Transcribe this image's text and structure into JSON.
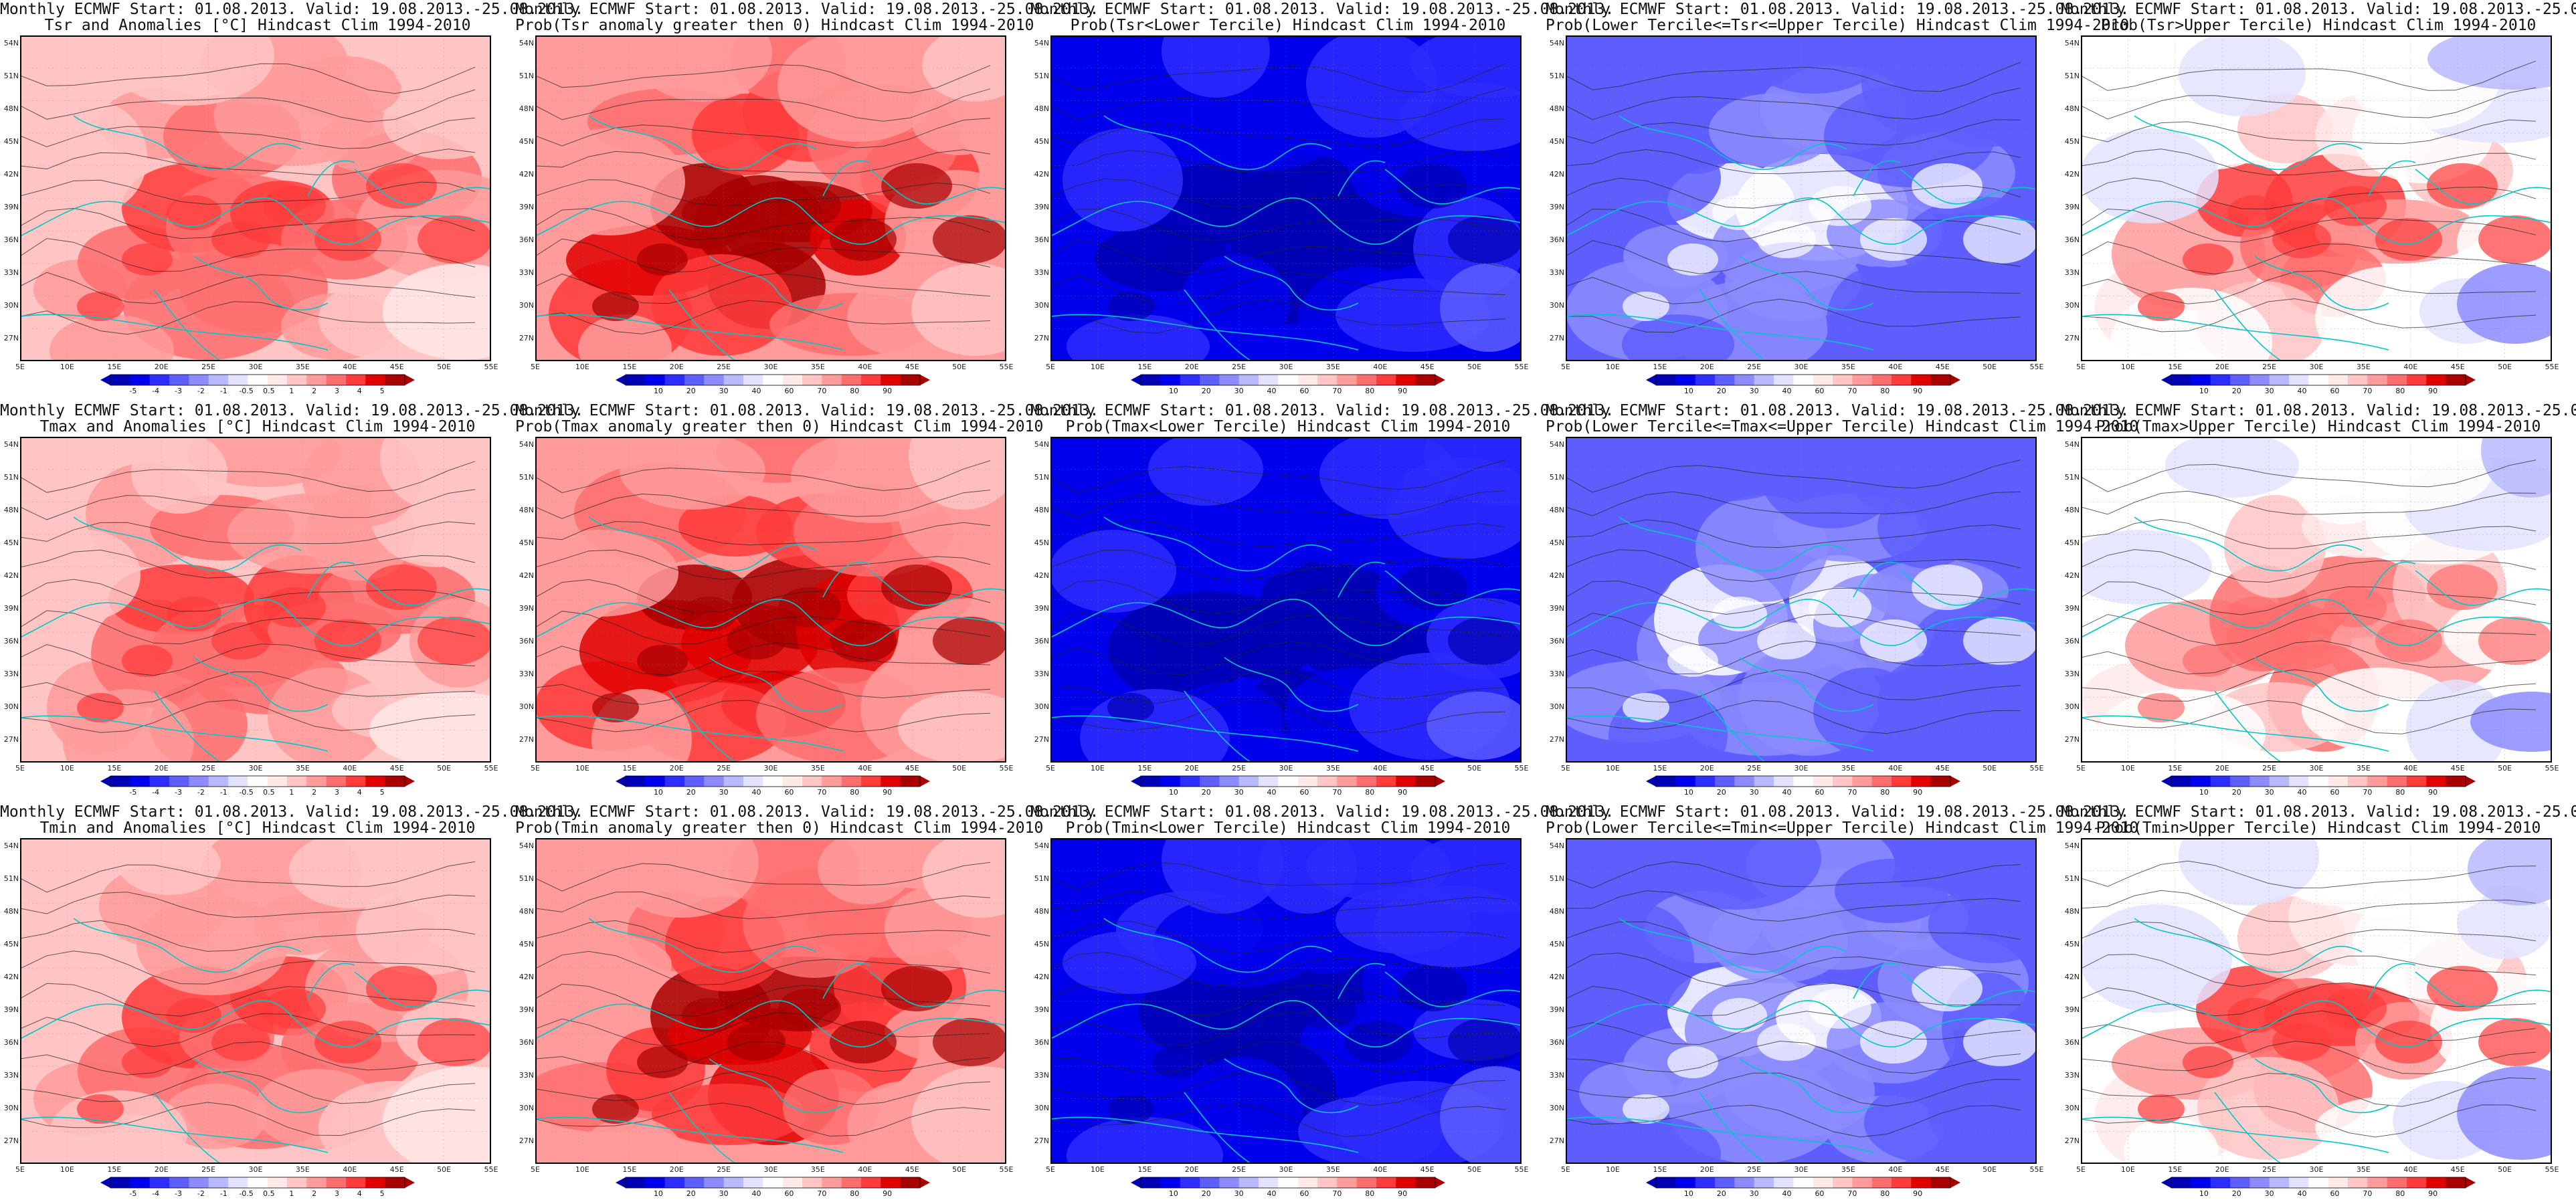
{
  "header": "Monthly ECMWF Start: 01.08.2013. Valid: 19.08.2013.-25.08.2013.",
  "y_labels": [
    "54N",
    "51N",
    "48N",
    "45N",
    "42N",
    "39N",
    "36N",
    "33N",
    "30N",
    "27N"
  ],
  "x_labels": [
    "5E",
    "10E",
    "15E",
    "20E",
    "25E",
    "30E",
    "35E",
    "40E",
    "45E",
    "50E",
    "55E"
  ],
  "colors": {
    "reds": [
      "#ffe9e9",
      "#ffc4c4",
      "#ff9b9b",
      "#ff6e6e",
      "#ff3b3b",
      "#e00000",
      "#a80000"
    ],
    "blues": [
      "#e3e3ff",
      "#b9b9ff",
      "#8c8cff",
      "#5e5eff",
      "#2d2dff",
      "#0000ec",
      "#0000b4"
    ],
    "coast": "#00c8c8",
    "contour": "#222222"
  },
  "legends": {
    "anom": [
      "-5",
      "-4",
      "-3",
      "-2",
      "-1",
      "-0.5",
      "0.5",
      "1",
      "2",
      "3",
      "4",
      "5"
    ],
    "prob": [
      "10",
      "20",
      "30",
      "40",
      "60",
      "70",
      "80",
      "90"
    ]
  },
  "maps": {
    "points": [
      [
        110,
        400,
        0.6
      ],
      [
        180,
        330,
        0.8
      ],
      [
        250,
        260,
        1.0
      ],
      [
        320,
        300,
        0.9
      ],
      [
        400,
        250,
        1.0
      ],
      [
        480,
        300,
        0.8
      ],
      [
        560,
        220,
        0.7
      ],
      [
        640,
        300,
        0.4
      ],
      [
        200,
        120,
        0.5
      ],
      [
        300,
        150,
        0.7
      ],
      [
        420,
        130,
        0.6
      ],
      [
        520,
        140,
        0.5
      ],
      [
        620,
        120,
        0.3
      ],
      [
        360,
        380,
        0.9
      ],
      [
        280,
        420,
        0.7
      ],
      [
        460,
        420,
        0.5
      ],
      [
        560,
        420,
        0.3
      ],
      [
        660,
        420,
        0.1
      ],
      [
        100,
        200,
        0.3
      ],
      [
        150,
        460,
        0.4
      ],
      [
        380,
        40,
        0.5
      ],
      [
        240,
        40,
        0.3
      ],
      [
        500,
        60,
        0.4
      ],
      [
        660,
        40,
        0.2
      ]
    ]
  },
  "panels": [
    {
      "title": "Tsr and Anomalies [°C] Hindcast Clim 1994-2010",
      "scheme": "anom",
      "intensity": 0.55,
      "legend": "anom"
    },
    {
      "title": "Prob(Tsr anomaly greater then 0) Hindcast Clim 1994-2010",
      "scheme": "warm",
      "intensity": 0.95,
      "legend": "prob"
    },
    {
      "title": "Prob(Tsr<Lower Tercile) Hindcast Clim 1994-2010",
      "scheme": "cold",
      "intensity": 0.95,
      "legend": "prob"
    },
    {
      "title": "Prob(Lower Tercile<=Tsr<=Upper Tercile) Hindcast Clim 1994-2010",
      "scheme": "mid",
      "intensity": 0.6,
      "legend": "prob"
    },
    {
      "title": "Prob(Tsr>Upper Tercile) Hindcast Clim 1994-2010",
      "scheme": "mixed",
      "intensity": 0.7,
      "legend": "prob"
    },
    {
      "title": "Tmax and Anomalies [°C] Hindcast Clim 1994-2010",
      "scheme": "anom",
      "intensity": 0.55,
      "legend": "anom"
    },
    {
      "title": "Prob(Tmax anomaly greater then 0) Hindcast Clim 1994-2010",
      "scheme": "warm",
      "intensity": 0.9,
      "legend": "prob"
    },
    {
      "title": "Prob(Tmax<Lower Tercile) Hindcast Clim 1994-2010",
      "scheme": "cold",
      "intensity": 0.95,
      "legend": "prob"
    },
    {
      "title": "Prob(Lower Tercile<=Tmax<=Upper Tercile) Hindcast Clim 1994-2010",
      "scheme": "mid",
      "intensity": 0.6,
      "legend": "prob"
    },
    {
      "title": "Prob(Tmax>Upper Tercile) Hindcast Clim 1994-2010",
      "scheme": "mixed",
      "intensity": 0.6,
      "legend": "prob"
    },
    {
      "title": "Tmin and Anomalies [°C] Hindcast Clim 1994-2010",
      "scheme": "anom",
      "intensity": 0.5,
      "legend": "anom"
    },
    {
      "title": "Prob(Tmin anomaly greater then 0) Hindcast Clim 1994-2010",
      "scheme": "warm",
      "intensity": 0.85,
      "legend": "prob"
    },
    {
      "title": "Prob(Tmin<Lower Tercile) Hindcast Clim 1994-2010",
      "scheme": "cold",
      "intensity": 0.9,
      "legend": "prob"
    },
    {
      "title": "Prob(Lower Tercile<=Tmin<=Upper Tercile) Hindcast Clim 1994-2010",
      "scheme": "mid",
      "intensity": 0.55,
      "legend": "prob"
    },
    {
      "title": "Prob(Tmin>Upper Tercile) Hindcast Clim 1994-2010",
      "scheme": "mixed",
      "intensity": 0.7,
      "legend": "prob"
    }
  ]
}
